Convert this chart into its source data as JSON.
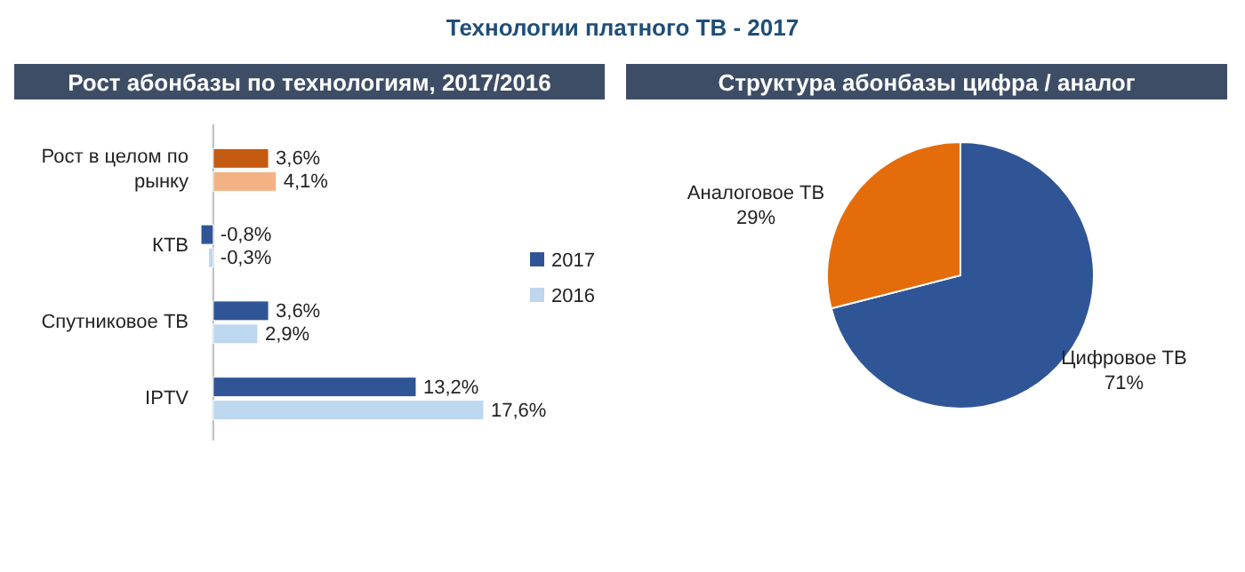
{
  "chart_data": [
    {
      "type": "bar",
      "orientation": "horizontal",
      "title": "Технологии платного ТВ - 2017",
      "subtitle": "Рост абонбазы по технологиям, 2017/2016",
      "categories": [
        "Рост в целом по рынку",
        "КТВ",
        "Спутниковое ТВ",
        "IPTV"
      ],
      "legend": "right",
      "series": [
        {
          "name": "2017",
          "color": "#2f5597",
          "colors": [
            "#c55a11",
            "#2f5597",
            "#2f5597",
            "#2f5597"
          ],
          "values": [
            3.6,
            -0.8,
            3.6,
            13.2
          ],
          "value_labels": [
            "3,6%",
            "-0,8%",
            "3,6%",
            "13,2%"
          ]
        },
        {
          "name": "2016",
          "color": "#bdd7ee",
          "colors": [
            "#f4b183",
            "#bdd7ee",
            "#bdd7ee",
            "#bdd7ee"
          ],
          "values": [
            4.1,
            -0.3,
            2.9,
            17.6
          ],
          "value_labels": [
            "4,1%",
            "-0,3%",
            "2,9%",
            "17,6%"
          ]
        }
      ]
    },
    {
      "type": "pie",
      "title": "Структура абонбазы цифра / аналог",
      "categories": [
        "Цифровое ТВ",
        "Аналоговое ТВ"
      ],
      "values": [
        71,
        29
      ],
      "colors": [
        "#2f5597",
        "#e46c0a"
      ],
      "value_labels": [
        "71%",
        "29%"
      ]
    }
  ]
}
